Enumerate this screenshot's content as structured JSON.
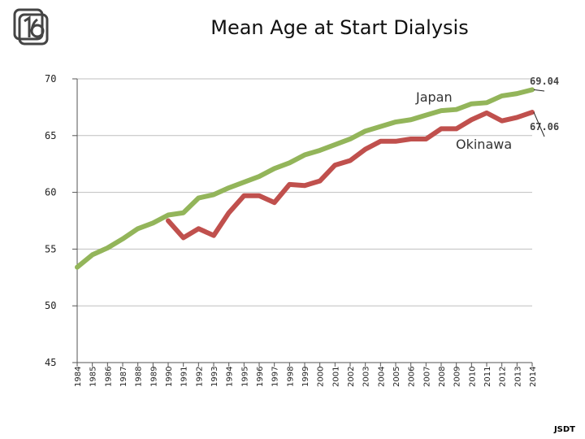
{
  "header": {
    "title": "Mean Age at Start Dialysis",
    "footer": "JSDT"
  },
  "chart_data": {
    "type": "line",
    "title": "Mean Age at Start Dialysis",
    "xlabel": "",
    "ylabel": "",
    "ylim": [
      45,
      70
    ],
    "yticks": [
      45,
      50,
      55,
      60,
      65,
      70
    ],
    "grid": true,
    "categories": [
      "1984",
      "1985",
      "1986",
      "1987",
      "1988",
      "1989",
      "1990",
      "1991",
      "1992",
      "1993",
      "1994",
      "1995",
      "1996",
      "1997",
      "1998",
      "1999",
      "2000",
      "2001",
      "2002",
      "2003",
      "2004",
      "2005",
      "2006",
      "2007",
      "2008",
      "2009",
      "2010",
      "2011",
      "2012",
      "2013",
      "2014"
    ],
    "series": [
      {
        "name": "Japan",
        "color": "#93b55a",
        "end_label": "69.04",
        "values": [
          53.4,
          54.5,
          55.1,
          55.9,
          56.8,
          57.3,
          58.0,
          58.2,
          59.5,
          59.8,
          60.4,
          60.9,
          61.4,
          62.1,
          62.6,
          63.3,
          63.7,
          64.2,
          64.7,
          65.4,
          65.8,
          66.2,
          66.4,
          66.8,
          67.2,
          67.3,
          67.8,
          67.9,
          68.5,
          68.7,
          69.04
        ]
      },
      {
        "name": "Okinawa",
        "color": "#c0504d",
        "end_label": "67.06",
        "values": [
          null,
          null,
          null,
          null,
          null,
          null,
          57.5,
          56.0,
          56.8,
          56.2,
          58.2,
          59.7,
          59.7,
          59.1,
          60.7,
          60.6,
          61.0,
          62.4,
          62.8,
          63.8,
          64.5,
          64.5,
          64.7,
          64.7,
          65.6,
          65.6,
          66.4,
          67.0,
          66.3,
          66.6,
          67.06
        ]
      }
    ]
  }
}
